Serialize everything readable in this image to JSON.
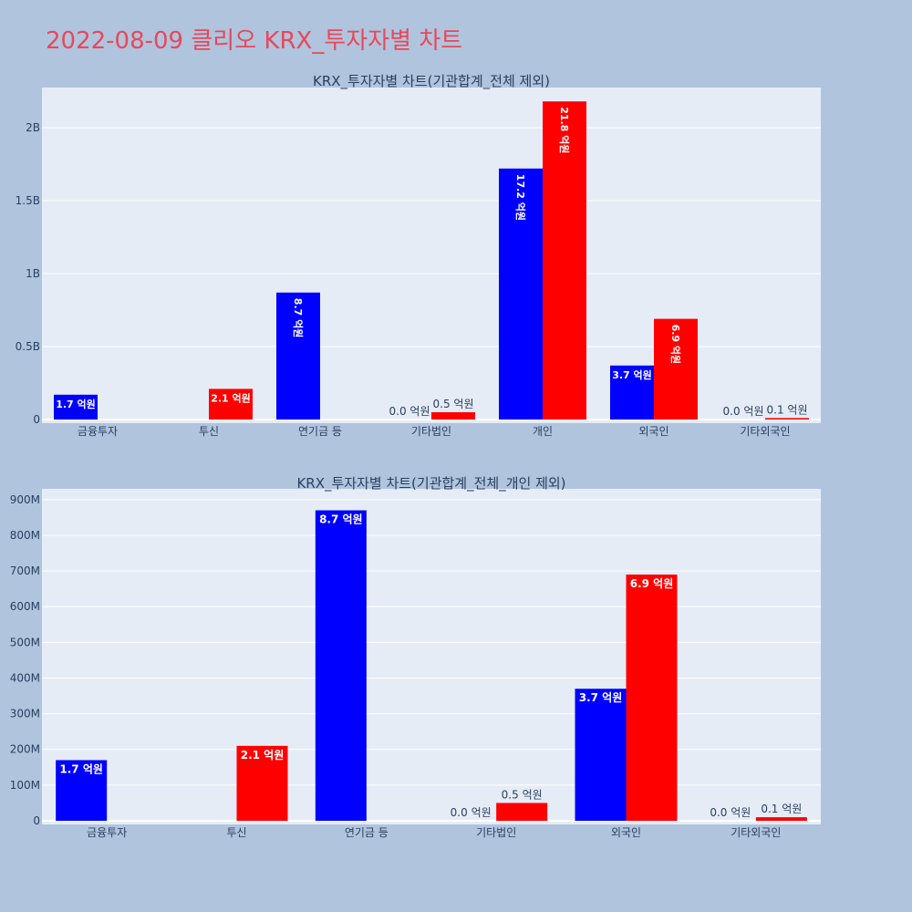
{
  "page": {
    "title": "2022-08-09 클리오 KRX_투자자별 차트"
  },
  "colors": {
    "background": "#b0c4de",
    "plot_bg": "#e5ecf6",
    "title": "#e8485a",
    "buy": "#0000ff",
    "sell": "#ff0000",
    "text": "#2a3f5f"
  },
  "chart_data": [
    {
      "type": "bar",
      "title": "KRX_투자자별 차트(기관합계_전체 제외)",
      "categories": [
        "금융투자",
        "투신",
        "연기금 등",
        "기타법인",
        "개인",
        "외국인",
        "기타외국인"
      ],
      "series": [
        {
          "color": "#0000ff",
          "values": [
            170000000,
            0,
            870000000,
            0,
            1720000000,
            370000000,
            0
          ],
          "labels": [
            "1.7 억원",
            "",
            "8.7 억원",
            "0.0 억원",
            "17.2 억원",
            "3.7 억원",
            "0.0 억원"
          ]
        },
        {
          "color": "#ff0000",
          "values": [
            0,
            210000000,
            0,
            50000000,
            2180000000,
            690000000,
            10000000
          ],
          "labels": [
            "",
            "2.1 억원",
            "",
            "0.5 억원",
            "21.8 억원",
            "6.9 억원",
            "0.1 억원"
          ]
        }
      ],
      "ylim": [
        0,
        2250000000
      ],
      "yticks": [
        0,
        500000000,
        1000000000,
        1500000000,
        2000000000
      ],
      "yticklabels": [
        "0",
        "0.5B",
        "1B",
        "1.5B",
        "2B"
      ],
      "grid": true
    },
    {
      "type": "bar",
      "title": "KRX_투자자별 차트(기관합계_전체_개인 제외)",
      "categories": [
        "금융투자",
        "투신",
        "연기금 등",
        "기타법인",
        "외국인",
        "기타외국인"
      ],
      "series": [
        {
          "color": "#0000ff",
          "values": [
            170000000,
            0,
            870000000,
            0,
            370000000,
            0
          ],
          "labels": [
            "1.7 억원",
            "",
            "8.7 억원",
            "0.0 억원",
            "3.7 억원",
            "0.0 억원"
          ]
        },
        {
          "color": "#ff0000",
          "values": [
            0,
            210000000,
            0,
            50000000,
            690000000,
            10000000
          ],
          "labels": [
            "",
            "2.1 억원",
            "",
            "0.5 억원",
            "6.9 억원",
            "0.1 억원"
          ]
        }
      ],
      "ylim": [
        0,
        920000000
      ],
      "yticks": [
        0,
        100000000,
        200000000,
        300000000,
        400000000,
        500000000,
        600000000,
        700000000,
        800000000,
        900000000
      ],
      "yticklabels": [
        "0",
        "100M",
        "200M",
        "300M",
        "400M",
        "500M",
        "600M",
        "700M",
        "800M",
        "900M"
      ],
      "grid": true
    }
  ]
}
